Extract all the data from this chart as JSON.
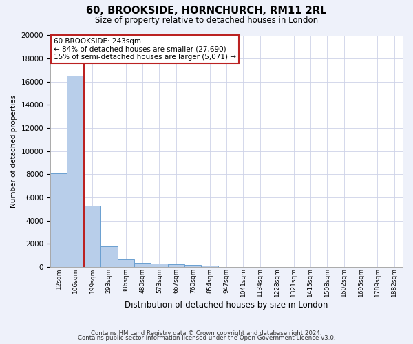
{
  "title1": "60, BROOKSIDE, HORNCHURCH, RM11 2RL",
  "title2": "Size of property relative to detached houses in London",
  "xlabel": "Distribution of detached houses by size in London",
  "ylabel": "Number of detached properties",
  "bar_labels": [
    "12sqm",
    "106sqm",
    "199sqm",
    "293sqm",
    "386sqm",
    "480sqm",
    "573sqm",
    "667sqm",
    "760sqm",
    "854sqm",
    "947sqm",
    "1041sqm",
    "1134sqm",
    "1228sqm",
    "1321sqm",
    "1415sqm",
    "1508sqm",
    "1602sqm",
    "1695sqm",
    "1789sqm",
    "1882sqm"
  ],
  "bar_heights": [
    8100,
    16500,
    5300,
    1750,
    650,
    370,
    280,
    210,
    160,
    130,
    0,
    0,
    0,
    0,
    0,
    0,
    0,
    0,
    0,
    0,
    0
  ],
  "bar_color": "#b8ceea",
  "bar_edge_color": "#6a9fd0",
  "vline_color": "#bb2222",
  "vline_x": 1.5,
  "annotation_text": "60 BROOKSIDE: 243sqm\n← 84% of detached houses are smaller (27,690)\n15% of semi-detached houses are larger (5,071) →",
  "annotation_box_edgecolor": "#bb2222",
  "ylim_max": 20000,
  "yticks": [
    0,
    2000,
    4000,
    6000,
    8000,
    10000,
    12000,
    14000,
    16000,
    18000,
    20000
  ],
  "footnote1": "Contains HM Land Registry data © Crown copyright and database right 2024.",
  "footnote2": "Contains public sector information licensed under the Open Government Licence v3.0.",
  "fig_bg_color": "#eef1fa",
  "plot_bg_color": "#ffffff",
  "grid_color": "#cdd2e8"
}
